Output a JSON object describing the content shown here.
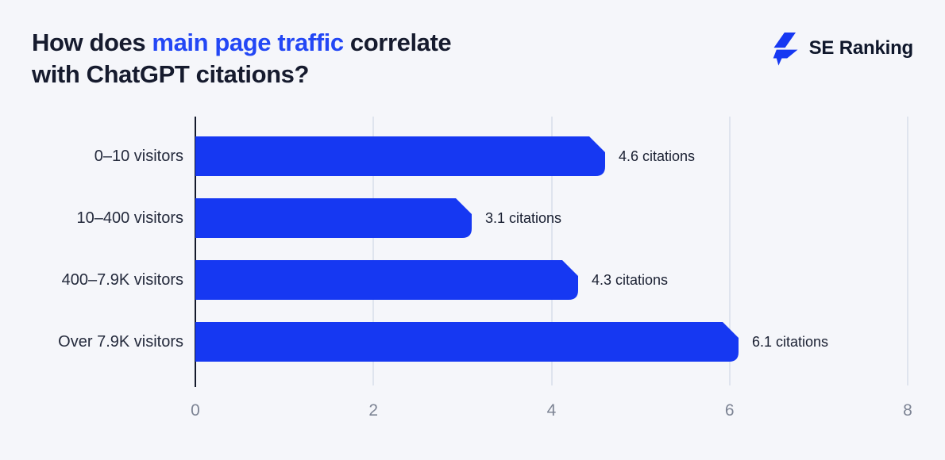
{
  "title": {
    "prefix": "How does ",
    "accent": "main page traffic",
    "suffix": " correlate",
    "line2": "with ChatGPT citations?"
  },
  "logo": {
    "brand": "SE Ranking",
    "icon": "flash-icon",
    "icon_color": "#1638F2",
    "text_color": "#0F172B"
  },
  "colors": {
    "background": "#F5F6FA",
    "bar": "#1638F2",
    "accent_text": "#2347F5",
    "title_text": "#161B2E",
    "category_label": "#242A3C",
    "value_label": "#191F31",
    "tick_label": "#7D8494",
    "gridline": "#DFE4EE",
    "axis_line": "#141A2B"
  },
  "chart_data": {
    "type": "bar",
    "orientation": "horizontal",
    "title": "How does main page traffic correlate with ChatGPT citations?",
    "categories": [
      "0–10 visitors",
      "10–400 visitors",
      "400–7.9K visitors",
      "Over 7.9K visitors"
    ],
    "values": [
      4.6,
      3.1,
      4.3,
      6.1
    ],
    "value_labels": [
      "4.6 citations",
      "3.1 citations",
      "4.3 citations",
      "6.1 citations"
    ],
    "value_suffix": " citations",
    "xlabel": "",
    "ylabel": "",
    "x_ticks": [
      0,
      2,
      4,
      6,
      8
    ],
    "xlim": [
      0,
      8
    ],
    "grid": "vertical-light",
    "legend": "none",
    "bar_color": "#1638F2"
  }
}
